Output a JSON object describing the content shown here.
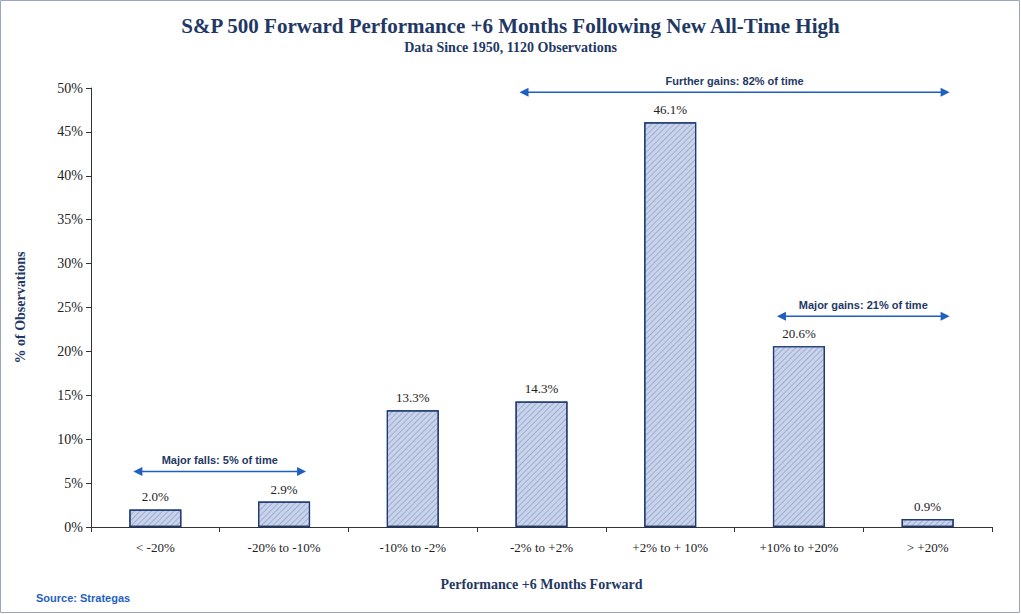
{
  "chart_data": {
    "type": "bar",
    "title": "S&P 500 Forward Performance +6 Months Following New All-Time High",
    "subtitle": "Data Since 1950, 1120 Observations",
    "x_label": "Performance +6 Months Forward",
    "y_label": "% of Observations",
    "categories": [
      "< -20%",
      "-20% to -10%",
      "-10% to -2%",
      "-2% to +2%",
      "+2% to + 10%",
      "+10% to +20%",
      "> +20%"
    ],
    "values": [
      2.0,
      2.9,
      13.3,
      14.3,
      46.1,
      20.6,
      0.9
    ],
    "value_labels": [
      "2.0%",
      "2.9%",
      "13.3%",
      "14.3%",
      "46.1%",
      "20.6%",
      "0.9%"
    ],
    "data_labels": true,
    "color": "#c9d4ec",
    "ylim": [
      0,
      50
    ],
    "yticks": [
      {
        "value": 0,
        "label": "0%"
      },
      {
        "value": 5,
        "label": "5%"
      },
      {
        "value": 10,
        "label": "10%"
      },
      {
        "value": 15,
        "label": "15%"
      },
      {
        "value": 20,
        "label": "20%"
      },
      {
        "value": 25,
        "label": "25%"
      },
      {
        "value": 30,
        "label": "30%"
      },
      {
        "value": 35,
        "label": "35%"
      },
      {
        "value": 40,
        "label": "40%"
      },
      {
        "value": 45,
        "label": "45%"
      },
      {
        "value": 50,
        "label": "50%"
      }
    ],
    "grid": false,
    "annotations": [
      {
        "text": "Major falls: 5% of time",
        "from": "< -20%",
        "to": "-20% to -10%"
      },
      {
        "text": "Further gains: 82% of time",
        "from": "-2% to +2%",
        "to": "> +20%"
      },
      {
        "text": "Major gains: 21% of time",
        "from": "+10% to +20%",
        "to": "> +20%"
      }
    ],
    "source": "Source: Strategas"
  }
}
